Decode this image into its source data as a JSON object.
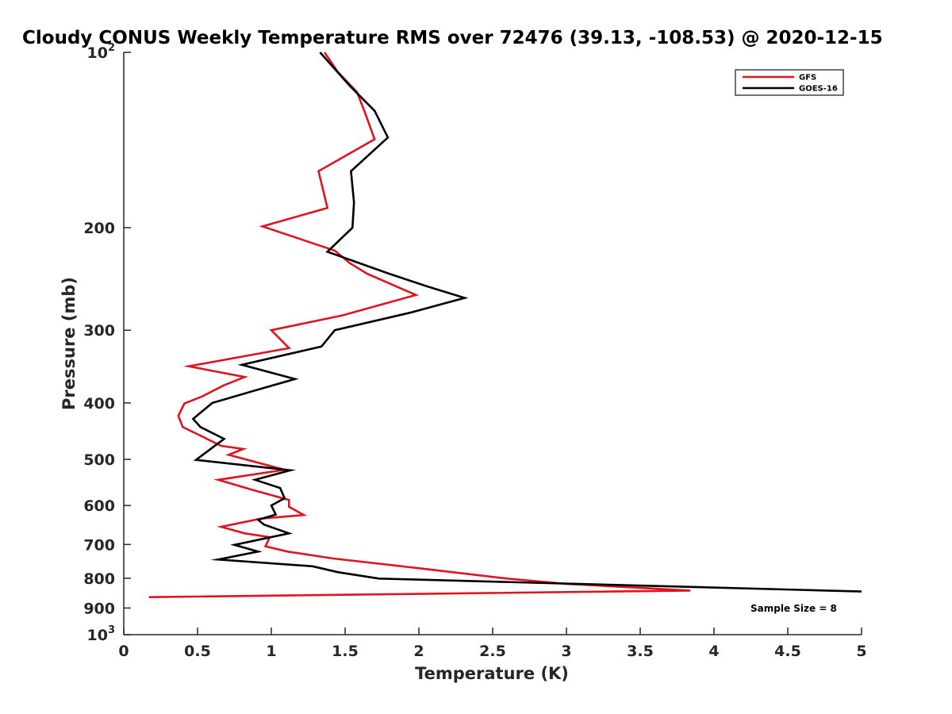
{
  "chart_data": {
    "type": "line",
    "title": "Cloudy CONUS Weekly Temperature RMS over 72476 (39.13, -108.53) @ 2020-12-15",
    "xlabel": "Temperature (K)",
    "ylabel": "Pressure (mb)",
    "xlim": [
      0,
      5
    ],
    "ylim": [
      100,
      1000
    ],
    "yscale": "log",
    "y_reversed": true,
    "grid": false,
    "legend_position": "top-right",
    "x_ticks": [
      0,
      0.5,
      1,
      1.5,
      2,
      2.5,
      3,
      3.5,
      4,
      4.5,
      5
    ],
    "x_tick_labels": [
      "0",
      "0.5",
      "1",
      "1.5",
      "2",
      "2.5",
      "3",
      "3.5",
      "4",
      "4.5",
      "5"
    ],
    "y_ticks": [
      100,
      200,
      300,
      400,
      500,
      600,
      700,
      800,
      900,
      1000
    ],
    "y_tick_labels": [
      {
        "base": "10",
        "exp": "2"
      },
      {
        "base": "200",
        "exp": ""
      },
      {
        "base": "300",
        "exp": ""
      },
      {
        "base": "400",
        "exp": ""
      },
      {
        "base": "500",
        "exp": ""
      },
      {
        "base": "600",
        "exp": ""
      },
      {
        "base": "700",
        "exp": ""
      },
      {
        "base": "800",
        "exp": ""
      },
      {
        "base": "900",
        "exp": ""
      },
      {
        "base": "10",
        "exp": "3"
      }
    ],
    "annotation": "Sample Size = 8",
    "series": [
      {
        "name": "GFS",
        "color": "#e0141e",
        "points": [
          [
            1.36,
            100
          ],
          [
            1.45,
            108
          ],
          [
            1.58,
            117
          ],
          [
            1.63,
            126
          ],
          [
            1.7,
            141
          ],
          [
            1.32,
            160
          ],
          [
            1.38,
            185
          ],
          [
            0.94,
            199
          ],
          [
            1.43,
            219
          ],
          [
            1.53,
            230
          ],
          [
            1.65,
            240
          ],
          [
            1.98,
            261
          ],
          [
            1.48,
            283
          ],
          [
            1.0,
            300
          ],
          [
            1.12,
            322
          ],
          [
            0.44,
            346
          ],
          [
            0.82,
            361
          ],
          [
            0.68,
            373
          ],
          [
            0.53,
            390
          ],
          [
            0.41,
            401
          ],
          [
            0.37,
            421
          ],
          [
            0.4,
            440
          ],
          [
            0.66,
            474
          ],
          [
            0.81,
            480
          ],
          [
            0.71,
            491
          ],
          [
            1.09,
            521
          ],
          [
            0.64,
            542
          ],
          [
            0.86,
            563
          ],
          [
            1.12,
            587
          ],
          [
            1.12,
            603
          ],
          [
            1.22,
            623
          ],
          [
            0.93,
            632
          ],
          [
            0.66,
            653
          ],
          [
            0.82,
            670
          ],
          [
            0.99,
            680
          ],
          [
            0.96,
            705
          ],
          [
            1.11,
            720
          ],
          [
            1.42,
            740
          ],
          [
            2.02,
            770
          ],
          [
            2.6,
            801
          ],
          [
            3.0,
            818
          ],
          [
            3.84,
            840
          ],
          [
            0.17,
            862
          ]
        ]
      },
      {
        "name": "GOES-16",
        "color": "#000000",
        "points": [
          [
            1.33,
            100
          ],
          [
            1.53,
            114
          ],
          [
            1.7,
            126
          ],
          [
            1.79,
            140
          ],
          [
            1.54,
            160
          ],
          [
            1.56,
            181
          ],
          [
            1.55,
            200
          ],
          [
            1.38,
            220
          ],
          [
            1.8,
            240
          ],
          [
            2.05,
            252
          ],
          [
            2.31,
            264
          ],
          [
            1.94,
            280
          ],
          [
            1.43,
            300
          ],
          [
            1.34,
            320
          ],
          [
            0.8,
            344
          ],
          [
            1.16,
            364
          ],
          [
            0.9,
            380
          ],
          [
            0.6,
            400
          ],
          [
            0.47,
            426
          ],
          [
            0.52,
            440
          ],
          [
            0.68,
            461
          ],
          [
            0.49,
            501
          ],
          [
            1.13,
            522
          ],
          [
            0.89,
            542
          ],
          [
            1.06,
            560
          ],
          [
            1.09,
            583
          ],
          [
            1.0,
            600
          ],
          [
            1.03,
            622
          ],
          [
            0.91,
            635
          ],
          [
            0.95,
            647
          ],
          [
            1.12,
            670
          ],
          [
            0.75,
            701
          ],
          [
            0.91,
            720
          ],
          [
            0.64,
            743
          ],
          [
            1.28,
            763
          ],
          [
            1.45,
            781
          ],
          [
            1.73,
            801
          ],
          [
            4.76,
            840
          ],
          [
            5.0,
            843
          ]
        ]
      }
    ]
  }
}
